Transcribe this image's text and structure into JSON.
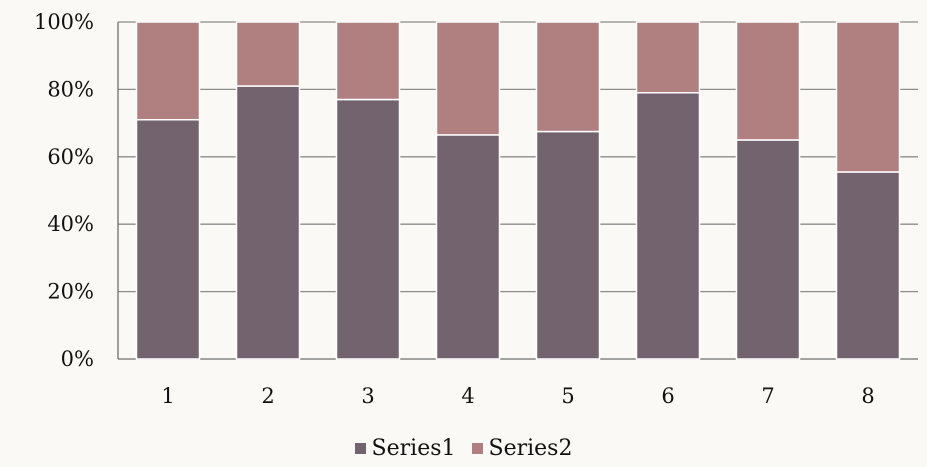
{
  "chart_data": {
    "type": "bar",
    "stacked": true,
    "percent": true,
    "categories": [
      "1",
      "2",
      "3",
      "4",
      "5",
      "6",
      "7",
      "8"
    ],
    "series": [
      {
        "name": "Series1",
        "color": "#73636e",
        "values": [
          71,
          81,
          77,
          66.5,
          67.5,
          79,
          65,
          55.5
        ]
      },
      {
        "name": "Series2",
        "color": "#b08080",
        "values": [
          29,
          19,
          23,
          33.5,
          32.5,
          21,
          35,
          44.5
        ]
      }
    ],
    "y_ticks": [
      "0%",
      "20%",
      "40%",
      "60%",
      "80%",
      "100%"
    ],
    "ylim": [
      0,
      100
    ],
    "grid": true,
    "legend_position": "bottom"
  }
}
